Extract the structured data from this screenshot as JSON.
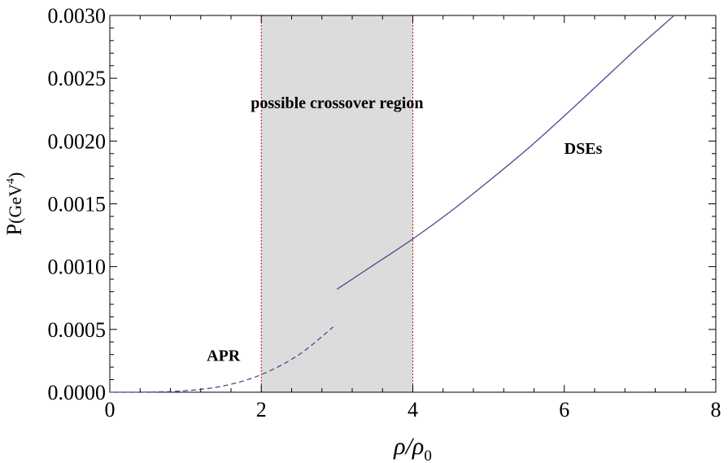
{
  "chart_data": {
    "type": "line",
    "title": "",
    "xlabel": "ρ/ρ0",
    "xlabel_parts": {
      "main": "ρ/ρ",
      "sub": "0"
    },
    "ylabel": "P(GeV⁴)",
    "ylabel_parts": {
      "main": "P",
      "unit_open": "(GeV",
      "sup": "4",
      "unit_close": ")"
    },
    "xlim": [
      0,
      8
    ],
    "ylim": [
      0,
      0.003
    ],
    "x_ticks": [
      0,
      2,
      4,
      6,
      8
    ],
    "x_tick_labels": [
      "0",
      "2",
      "4",
      "6",
      "8"
    ],
    "y_ticks": [
      0,
      0.0005,
      0.001,
      0.0015,
      0.002,
      0.0025,
      0.003
    ],
    "y_tick_labels": [
      "0.0000",
      "0.0005",
      "0.0010",
      "0.0015",
      "0.0020",
      "0.0025",
      "0.0030"
    ],
    "grid": false,
    "shaded_region": {
      "x": [
        2,
        4
      ],
      "label": "possible crossover region",
      "fill": "#dcdcdc",
      "border": "#cc0000"
    },
    "line_color": "#4a4a8c",
    "series": [
      {
        "name": "APR",
        "style": "dashed",
        "x": [
          0.0,
          0.5,
          1.0,
          1.5,
          2.0,
          2.5,
          2.95
        ],
        "y": [
          0.0,
          1e-06,
          1.2e-05,
          5e-05,
          0.00014,
          0.0003,
          0.00052
        ]
      },
      {
        "name": "DSEs",
        "style": "solid",
        "x": [
          3.0,
          3.5,
          4.0,
          4.5,
          5.0,
          5.5,
          6.0,
          6.5,
          7.0,
          7.45
        ],
        "y": [
          0.00082,
          0.00102,
          0.00122,
          0.00144,
          0.00168,
          0.00193,
          0.0022,
          0.00248,
          0.00276,
          0.003
        ]
      }
    ],
    "annotations": [
      {
        "text": "APR",
        "x": 1.5,
        "y": 0.00025
      },
      {
        "text": "possible crossover region",
        "x": 3.0,
        "y": 0.00226
      },
      {
        "text": "DSEs",
        "x": 6.25,
        "y": 0.0019
      }
    ]
  }
}
